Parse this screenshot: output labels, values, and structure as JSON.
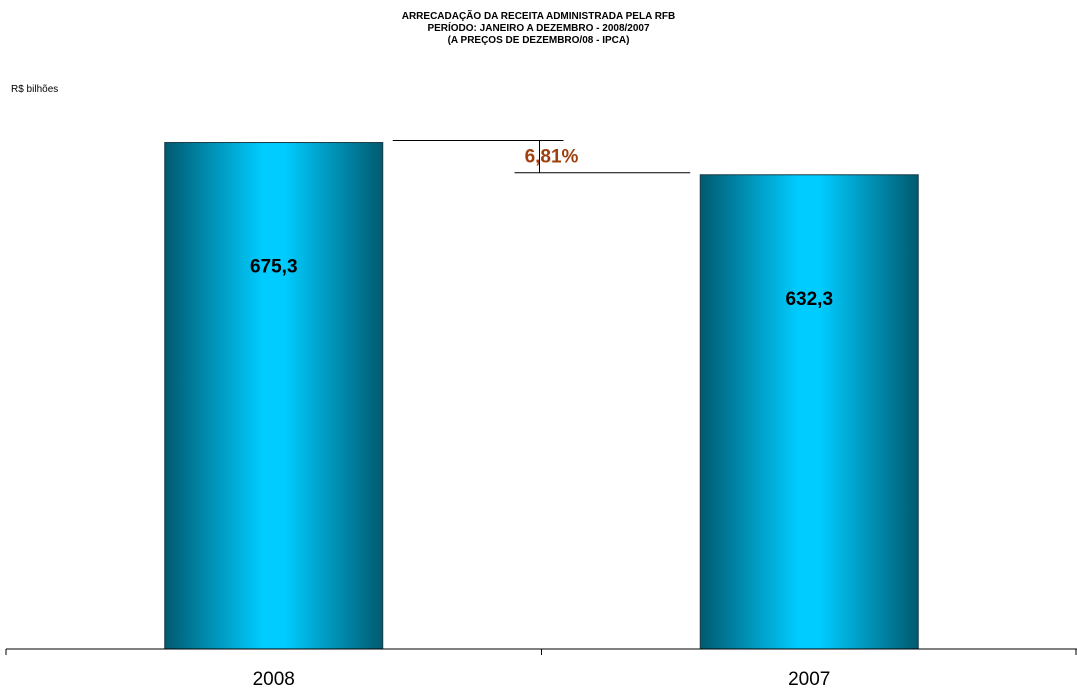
{
  "title_lines": [
    "ARRECADAÇÃO DA RECEITA ADMINISTRADA PELA RFB",
    "PERÍODO: JANEIRO A DEZEMBRO - 2008/2007",
    "(A PREÇOS DE DEZEMBRO/08 - IPCA)"
  ],
  "unit_label": "R$ bilhões",
  "colors": {
    "bar_center": "#00ccff",
    "bar_edge": "#005a70",
    "difference_label": "#a0400e",
    "axis": "#000000"
  },
  "chart_data": {
    "type": "bar",
    "title": "ARRECADAÇÃO DA RECEITA ADMINISTRADA PELA RFB",
    "subtitle": "PERÍODO: JANEIRO A DEZEMBRO - 2008/2007 (A PREÇOS DE DEZEMBRO/08 - IPCA)",
    "ylabel": "R$ bilhões",
    "xlabel": "",
    "categories": [
      "2008",
      "2007"
    ],
    "values": [
      675.3,
      632.3
    ],
    "value_labels": [
      "675,3",
      "632,3"
    ],
    "ylim": [
      0,
      700
    ],
    "grid": false,
    "legend": "none",
    "annotation": {
      "text": "6,81%",
      "between": [
        "2008",
        "2007"
      ]
    }
  }
}
